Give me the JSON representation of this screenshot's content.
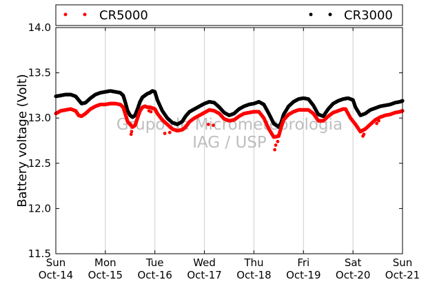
{
  "chart_data": {
    "type": "scatter",
    "title": "",
    "xlabel": "",
    "ylabel": "Battery voltage (Volt)",
    "ylim": [
      11.5,
      14.0
    ],
    "yticks": [
      "11.5",
      "12.0",
      "12.5",
      "13.0",
      "13.5",
      "14.0"
    ],
    "xlim": [
      0,
      7
    ],
    "xunit": "days since Sun Oct-14 00:00",
    "xticks": [
      {
        "day": "Sun",
        "date": "Oct-14"
      },
      {
        "day": "Mon",
        "date": "Oct-15"
      },
      {
        "day": "Tue",
        "date": "Oct-16"
      },
      {
        "day": "Wed",
        "date": "Oct-17"
      },
      {
        "day": "Thu",
        "date": "Oct-18"
      },
      {
        "day": "Fri",
        "date": "Oct-19"
      },
      {
        "day": "Sat",
        "date": "Oct-20"
      },
      {
        "day": "Sun",
        "date": "Oct-21"
      }
    ],
    "grid": "vertical",
    "legend_position": "top",
    "watermark": [
      "Grupo de Micrometeorologia",
      "IAG / USP"
    ],
    "series": [
      {
        "name": "CR5000",
        "color": "#ff0000",
        "points": [
          [
            0.0,
            13.05
          ],
          [
            0.1,
            13.08
          ],
          [
            0.2,
            13.09
          ],
          [
            0.3,
            13.1
          ],
          [
            0.4,
            13.08
          ],
          [
            0.46,
            13.03
          ],
          [
            0.52,
            13.02
          ],
          [
            0.6,
            13.05
          ],
          [
            0.7,
            13.1
          ],
          [
            0.8,
            13.13
          ],
          [
            0.9,
            13.15
          ],
          [
            1.0,
            13.15
          ],
          [
            1.1,
            13.16
          ],
          [
            1.2,
            13.16
          ],
          [
            1.3,
            13.15
          ],
          [
            1.36,
            13.12
          ],
          [
            1.4,
            13.05
          ],
          [
            1.45,
            12.96
          ],
          [
            1.5,
            12.93
          ],
          [
            1.55,
            12.9
          ],
          [
            1.6,
            12.92
          ],
          [
            1.65,
            13.0
          ],
          [
            1.7,
            13.08
          ],
          [
            1.75,
            13.12
          ],
          [
            1.8,
            13.13
          ],
          [
            1.85,
            13.12
          ],
          [
            1.9,
            13.12
          ],
          [
            1.95,
            13.11
          ],
          [
            2.0,
            13.1
          ],
          [
            2.05,
            13.05
          ],
          [
            2.15,
            12.98
          ],
          [
            2.25,
            12.93
          ],
          [
            2.35,
            12.88
          ],
          [
            2.45,
            12.86
          ],
          [
            2.55,
            12.87
          ],
          [
            2.62,
            12.9
          ],
          [
            2.7,
            12.96
          ],
          [
            2.8,
            13.0
          ],
          [
            2.9,
            13.03
          ],
          [
            3.0,
            13.06
          ],
          [
            3.1,
            13.09
          ],
          [
            3.2,
            13.08
          ],
          [
            3.3,
            13.05
          ],
          [
            3.4,
            12.99
          ],
          [
            3.5,
            12.97
          ],
          [
            3.6,
            12.98
          ],
          [
            3.7,
            13.02
          ],
          [
            3.8,
            13.05
          ],
          [
            3.9,
            13.06
          ],
          [
            4.0,
            13.07
          ],
          [
            4.1,
            13.07
          ],
          [
            4.2,
            13.0
          ],
          [
            4.3,
            12.88
          ],
          [
            4.4,
            12.79
          ],
          [
            4.5,
            12.8
          ],
          [
            4.55,
            12.9
          ],
          [
            4.6,
            12.98
          ],
          [
            4.7,
            13.04
          ],
          [
            4.8,
            13.07
          ],
          [
            4.9,
            13.09
          ],
          [
            5.0,
            13.09
          ],
          [
            5.1,
            13.09
          ],
          [
            5.2,
            13.05
          ],
          [
            5.3,
            12.97
          ],
          [
            5.4,
            12.97
          ],
          [
            5.5,
            13.02
          ],
          [
            5.6,
            13.06
          ],
          [
            5.7,
            13.08
          ],
          [
            5.8,
            13.1
          ],
          [
            5.85,
            13.1
          ],
          [
            5.95,
            13.0
          ],
          [
            6.05,
            12.93
          ],
          [
            6.15,
            12.85
          ],
          [
            6.25,
            12.88
          ],
          [
            6.35,
            12.93
          ],
          [
            6.45,
            12.98
          ],
          [
            6.55,
            13.01
          ],
          [
            6.65,
            13.03
          ],
          [
            6.75,
            13.04
          ],
          [
            6.85,
            13.06
          ],
          [
            6.95,
            13.07
          ],
          [
            7.0,
            13.08
          ]
        ],
        "outliers": [
          [
            1.52,
            12.82
          ],
          [
            1.53,
            12.85
          ],
          [
            1.88,
            13.08
          ],
          [
            1.92,
            13.07
          ],
          [
            2.2,
            12.83
          ],
          [
            2.3,
            12.84
          ],
          [
            3.08,
            12.93
          ],
          [
            3.18,
            12.92
          ],
          [
            4.42,
            12.65
          ],
          [
            4.44,
            12.7
          ],
          [
            4.48,
            12.74
          ],
          [
            6.2,
            12.8
          ],
          [
            6.22,
            12.82
          ],
          [
            6.48,
            12.94
          ],
          [
            6.52,
            12.97
          ]
        ]
      },
      {
        "name": "CR3000",
        "color": "#000000",
        "points": [
          [
            0.0,
            13.24
          ],
          [
            0.1,
            13.25
          ],
          [
            0.2,
            13.26
          ],
          [
            0.3,
            13.26
          ],
          [
            0.4,
            13.24
          ],
          [
            0.46,
            13.2
          ],
          [
            0.52,
            13.16
          ],
          [
            0.6,
            13.17
          ],
          [
            0.7,
            13.22
          ],
          [
            0.8,
            13.26
          ],
          [
            0.9,
            13.28
          ],
          [
            1.0,
            13.29
          ],
          [
            1.1,
            13.3
          ],
          [
            1.2,
            13.29
          ],
          [
            1.3,
            13.28
          ],
          [
            1.36,
            13.25
          ],
          [
            1.4,
            13.18
          ],
          [
            1.45,
            13.08
          ],
          [
            1.5,
            13.03
          ],
          [
            1.55,
            13.01
          ],
          [
            1.6,
            13.03
          ],
          [
            1.65,
            13.1
          ],
          [
            1.7,
            13.18
          ],
          [
            1.75,
            13.23
          ],
          [
            1.8,
            13.25
          ],
          [
            1.85,
            13.27
          ],
          [
            1.9,
            13.28
          ],
          [
            1.95,
            13.3
          ],
          [
            2.0,
            13.29
          ],
          [
            2.05,
            13.2
          ],
          [
            2.15,
            13.08
          ],
          [
            2.25,
            13.0
          ],
          [
            2.35,
            12.95
          ],
          [
            2.45,
            12.93
          ],
          [
            2.55,
            12.96
          ],
          [
            2.62,
            13.02
          ],
          [
            2.7,
            13.07
          ],
          [
            2.8,
            13.1
          ],
          [
            2.9,
            13.13
          ],
          [
            3.0,
            13.16
          ],
          [
            3.1,
            13.18
          ],
          [
            3.2,
            13.17
          ],
          [
            3.3,
            13.12
          ],
          [
            3.4,
            13.06
          ],
          [
            3.5,
            13.03
          ],
          [
            3.6,
            13.05
          ],
          [
            3.7,
            13.1
          ],
          [
            3.8,
            13.13
          ],
          [
            3.9,
            13.15
          ],
          [
            4.0,
            13.16
          ],
          [
            4.1,
            13.18
          ],
          [
            4.2,
            13.15
          ],
          [
            4.3,
            13.05
          ],
          [
            4.4,
            12.94
          ],
          [
            4.5,
            12.9
          ],
          [
            4.55,
            12.95
          ],
          [
            4.6,
            13.04
          ],
          [
            4.7,
            13.13
          ],
          [
            4.8,
            13.18
          ],
          [
            4.9,
            13.21
          ],
          [
            5.0,
            13.22
          ],
          [
            5.1,
            13.21
          ],
          [
            5.2,
            13.14
          ],
          [
            5.3,
            13.04
          ],
          [
            5.4,
            13.02
          ],
          [
            5.5,
            13.1
          ],
          [
            5.6,
            13.16
          ],
          [
            5.7,
            13.19
          ],
          [
            5.8,
            13.21
          ],
          [
            5.9,
            13.22
          ],
          [
            6.0,
            13.2
          ],
          [
            6.05,
            13.12
          ],
          [
            6.15,
            13.03
          ],
          [
            6.25,
            13.05
          ],
          [
            6.35,
            13.09
          ],
          [
            6.45,
            13.11
          ],
          [
            6.55,
            13.13
          ],
          [
            6.65,
            13.14
          ],
          [
            6.75,
            13.15
          ],
          [
            6.85,
            13.17
          ],
          [
            6.95,
            13.18
          ],
          [
            7.0,
            13.19
          ]
        ],
        "outliers": []
      }
    ]
  }
}
